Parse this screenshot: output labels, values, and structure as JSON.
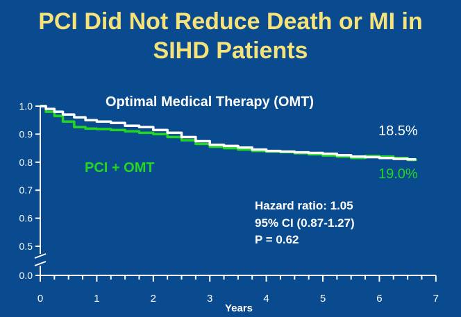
{
  "slide": {
    "title_line1": "PCI Did Not Reduce Death or MI in",
    "title_line2": "SIHD Patients"
  },
  "colors": {
    "background": "#0a4a8e",
    "title": "#f6e27a",
    "omt": "#ffffff",
    "pci": "#22d622",
    "axis": "#ffffff"
  },
  "chart_data": {
    "type": "line",
    "xlabel": "Years",
    "ylabel": "",
    "xlim": [
      0,
      7
    ],
    "ylim": [
      0.0,
      1.0
    ],
    "y_axis_break": true,
    "x_ticks": [
      "0",
      "1",
      "2",
      "3",
      "4",
      "5",
      "6",
      "7"
    ],
    "y_ticks": [
      "0.0",
      "0.5",
      "0.6",
      "0.7",
      "0.8",
      "0.9",
      "1.0"
    ],
    "grid": false,
    "series": [
      {
        "name": "Optimal Medical Therapy (OMT)",
        "color": "#ffffff",
        "end_label": "18.5%",
        "x": [
          0,
          0.1,
          0.25,
          0.4,
          0.6,
          0.8,
          1.0,
          1.25,
          1.5,
          1.75,
          2.0,
          2.25,
          2.5,
          2.75,
          3.0,
          3.25,
          3.5,
          3.75,
          4.0,
          4.25,
          4.5,
          4.75,
          5.0,
          5.25,
          5.5,
          5.75,
          6.0,
          6.25,
          6.5,
          6.65
        ],
        "y": [
          1.0,
          0.99,
          0.98,
          0.97,
          0.96,
          0.95,
          0.945,
          0.94,
          0.93,
          0.925,
          0.915,
          0.905,
          0.89,
          0.875,
          0.862,
          0.858,
          0.852,
          0.845,
          0.84,
          0.838,
          0.835,
          0.833,
          0.83,
          0.825,
          0.82,
          0.818,
          0.815,
          0.812,
          0.81,
          0.81
        ]
      },
      {
        "name": "PCI + OMT",
        "color": "#22d622",
        "end_label": "19.0%",
        "x": [
          0,
          0.1,
          0.25,
          0.4,
          0.6,
          0.8,
          1.0,
          1.25,
          1.5,
          1.75,
          2.0,
          2.25,
          2.5,
          2.75,
          3.0,
          3.25,
          3.5,
          3.75,
          4.0,
          4.25,
          4.5,
          4.75,
          5.0,
          5.25,
          5.5,
          5.75,
          6.0,
          6.25,
          6.5,
          6.65
        ],
        "y": [
          1.0,
          0.98,
          0.965,
          0.945,
          0.925,
          0.92,
          0.918,
          0.915,
          0.91,
          0.905,
          0.9,
          0.89,
          0.878,
          0.865,
          0.855,
          0.85,
          0.845,
          0.84,
          0.838,
          0.836,
          0.832,
          0.828,
          0.824,
          0.82,
          0.815,
          0.822,
          0.82,
          0.815,
          0.808,
          0.805
        ]
      }
    ],
    "annotations": {
      "omt_label": "Optimal Medical Therapy (OMT)",
      "pci_label": "PCI + OMT",
      "hazard_ratio": "Hazard ratio: 1.05",
      "ci": "95% CI (0.87-1.27)",
      "p_value": "P = 0.62"
    }
  }
}
